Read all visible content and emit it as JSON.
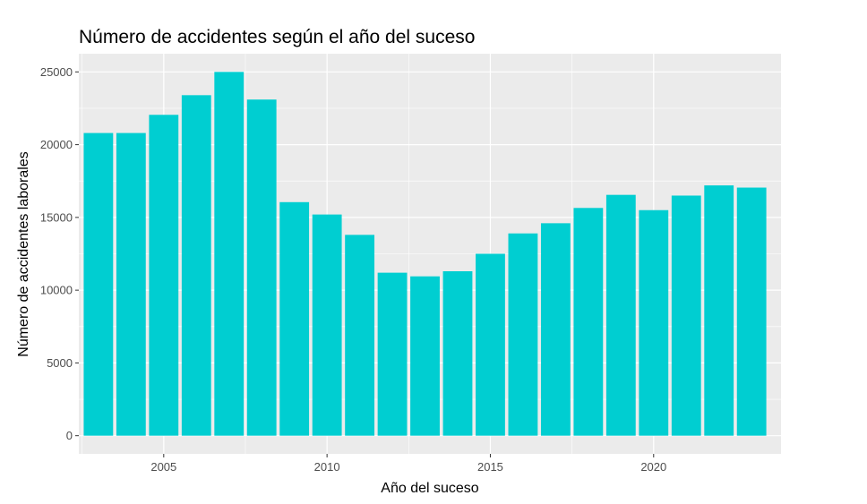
{
  "chart_data": {
    "type": "bar",
    "title": "Número de accidentes según el año del suceso",
    "xlabel": "Año del suceso",
    "ylabel": "Número de accidentes laborales",
    "x": [
      2003,
      2004,
      2005,
      2006,
      2007,
      2008,
      2009,
      2010,
      2011,
      2012,
      2013,
      2014,
      2015,
      2016,
      2017,
      2018,
      2019,
      2020,
      2021,
      2022,
      2023
    ],
    "values": [
      20800,
      20800,
      22050,
      23400,
      25000,
      23100,
      16050,
      15200,
      13800,
      11200,
      10950,
      11300,
      12500,
      13900,
      14600,
      15650,
      16550,
      15500,
      16500,
      17200,
      17050
    ],
    "xticks": [
      2005,
      2010,
      2015,
      2020
    ],
    "yticks": [
      0,
      5000,
      10000,
      15000,
      20000,
      25000
    ],
    "xlim": [
      2002.4,
      2023.9
    ],
    "ylim": [
      -1250,
      26250
    ],
    "bar_color": "#00CED1",
    "panel_color": "#EBEBEB",
    "grid_color": "#FFFFFF",
    "grid": true,
    "legend": "none"
  }
}
